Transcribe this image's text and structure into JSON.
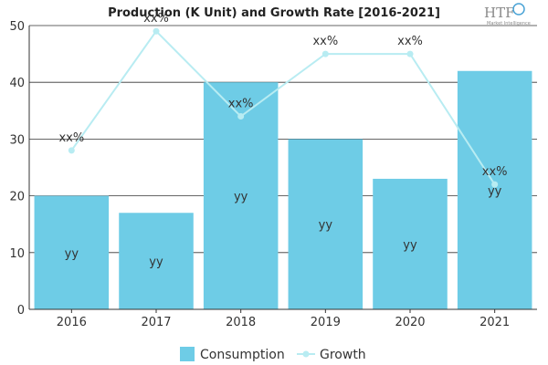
{
  "chart_data": {
    "type": "bar",
    "title": "Production (K Unit) and Growth Rate [2016-2021]",
    "categories": [
      "2016",
      "2017",
      "2018",
      "2019",
      "2020",
      "2021"
    ],
    "series": [
      {
        "name": "Consumption",
        "type": "bar",
        "values": [
          20,
          17,
          40,
          30,
          23,
          42
        ],
        "data_labels": [
          "yy",
          "yy",
          "yy",
          "yy",
          "yy",
          "yy"
        ],
        "color": "#6ecce6"
      },
      {
        "name": "Growth",
        "type": "line",
        "values": [
          28,
          49,
          34,
          45,
          45,
          22
        ],
        "data_labels": [
          "xx%",
          "xx%",
          "xx%",
          "xx%",
          "xx%",
          "xx%"
        ],
        "color": "#b8ecf2"
      }
    ],
    "ylim": [
      0,
      50
    ],
    "yticks": [
      0,
      10,
      20,
      30,
      40,
      50
    ],
    "grid": true,
    "legend": "bottom",
    "xlabel": "",
    "ylabel": ""
  },
  "logo": {
    "text": "HTF",
    "subtext": "Market Intelligence"
  }
}
